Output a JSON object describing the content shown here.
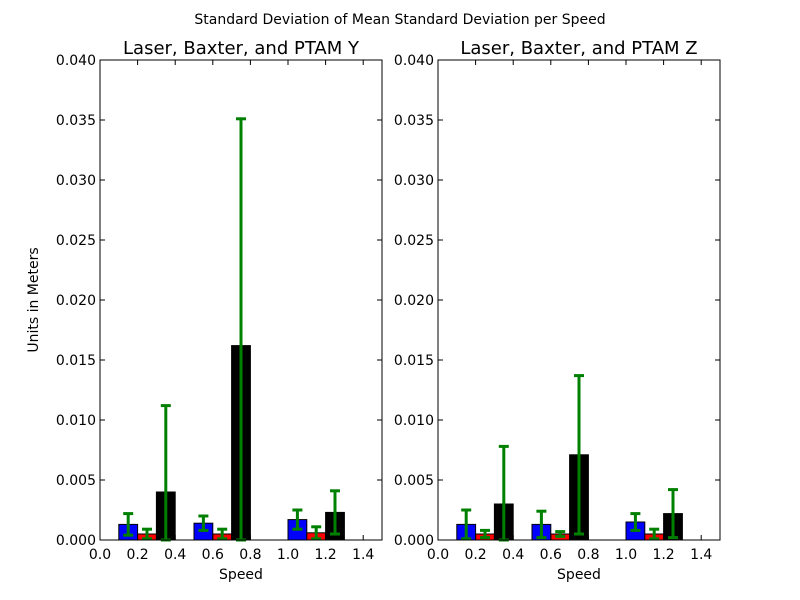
{
  "figure": {
    "suptitle": "Standard Deviation of Mean Standard Deviation per Speed"
  },
  "colors": {
    "laser": "#0000ff",
    "baxter": "#ff0000",
    "ptam": "#000000",
    "errorbar": "#008000"
  },
  "chart_data": [
    {
      "type": "bar",
      "title": "Laser, Baxter, and PTAM Y",
      "xlabel": "Speed",
      "ylabel": "Units in Meters",
      "xlim": [
        0.0,
        1.5
      ],
      "ylim": [
        0.0,
        0.04
      ],
      "xticks": [
        "0.0",
        "0.2",
        "0.4",
        "0.6",
        "0.8",
        "1.0",
        "1.2",
        "1.4"
      ],
      "yticks": [
        "0.000",
        "0.005",
        "0.010",
        "0.015",
        "0.020",
        "0.025",
        "0.030",
        "0.035",
        "0.040"
      ],
      "bar_width": 0.1,
      "series": [
        {
          "key": "laser",
          "x": [
            0.15,
            0.55,
            1.05
          ],
          "values": [
            0.0013,
            0.0014,
            0.0017
          ],
          "err": [
            0.0009,
            0.0006,
            0.0008
          ]
        },
        {
          "key": "baxter",
          "x": [
            0.25,
            0.65,
            1.15
          ],
          "values": [
            0.0005,
            0.0005,
            0.0006
          ],
          "err": [
            0.0004,
            0.0004,
            0.0005
          ]
        },
        {
          "key": "ptam",
          "x": [
            0.35,
            0.75,
            1.25
          ],
          "values": [
            0.004,
            0.0162,
            0.0023
          ],
          "err": [
            0.0072,
            0.0189,
            0.0018
          ]
        }
      ]
    },
    {
      "type": "bar",
      "title": "Laser, Baxter, and PTAM Z",
      "xlabel": "Speed",
      "ylabel": "",
      "xlim": [
        0.0,
        1.5
      ],
      "ylim": [
        0.0,
        0.04
      ],
      "xticks": [
        "0.0",
        "0.2",
        "0.4",
        "0.6",
        "0.8",
        "1.0",
        "1.2",
        "1.4"
      ],
      "yticks": [
        "0.000",
        "0.005",
        "0.010",
        "0.015",
        "0.020",
        "0.025",
        "0.030",
        "0.035",
        "0.040"
      ],
      "bar_width": 0.1,
      "series": [
        {
          "key": "laser",
          "x": [
            0.15,
            0.55,
            1.05
          ],
          "values": [
            0.0013,
            0.0013,
            0.0015
          ],
          "err": [
            0.0012,
            0.0011,
            0.0007
          ]
        },
        {
          "key": "baxter",
          "x": [
            0.25,
            0.65,
            1.15
          ],
          "values": [
            0.0005,
            0.0005,
            0.0005
          ],
          "err": [
            0.0003,
            0.0002,
            0.0004
          ]
        },
        {
          "key": "ptam",
          "x": [
            0.35,
            0.75,
            1.25
          ],
          "values": [
            0.003,
            0.0071,
            0.0022
          ],
          "err": [
            0.0048,
            0.0066,
            0.002
          ]
        }
      ]
    }
  ]
}
